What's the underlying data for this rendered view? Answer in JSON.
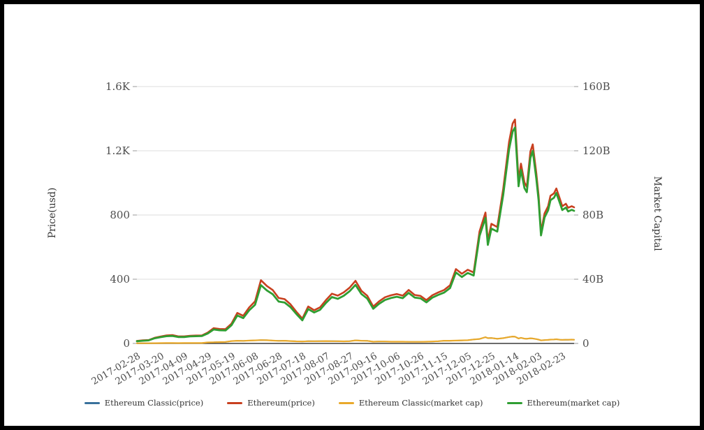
{
  "chart": {
    "left_axis_name": "Price(usd)",
    "right_axis_name": "Market Capital"
  },
  "chart_data": {
    "type": "line",
    "title": "",
    "grid": true,
    "legend_position": "bottom",
    "left_axis": {
      "label": "Price(usd)",
      "ticks": [
        "0",
        "400",
        "800",
        "1.2K",
        "1.6K"
      ],
      "min": 0,
      "max": 1600
    },
    "right_axis": {
      "label": "Market Capital",
      "ticks": [
        "0",
        "40B",
        "80B",
        "120B",
        "160B"
      ],
      "min": 0,
      "max": 160
    },
    "x_ticks": [
      "2017-02-28",
      "2017-03-20",
      "2017-04-09",
      "2017-04-29",
      "2017-05-19",
      "2017-06-08",
      "2017-06-28",
      "2017-07-18",
      "2017-08-07",
      "2017-08-27",
      "2017-09-16",
      "2017-10-06",
      "2017-10-26",
      "2017-11-15",
      "2017-12-05",
      "2017-12-25",
      "2018-01-14",
      "2018-02-03",
      "2018-02-23"
    ],
    "x": [
      "2017-02-28",
      "2017-03-05",
      "2017-03-10",
      "2017-03-15",
      "2017-03-20",
      "2017-03-25",
      "2017-03-30",
      "2017-04-04",
      "2017-04-09",
      "2017-04-14",
      "2017-04-19",
      "2017-04-24",
      "2017-04-29",
      "2017-05-04",
      "2017-05-09",
      "2017-05-14",
      "2017-05-19",
      "2017-05-24",
      "2017-05-29",
      "2017-06-03",
      "2017-06-08",
      "2017-06-13",
      "2017-06-18",
      "2017-06-23",
      "2017-06-28",
      "2017-07-03",
      "2017-07-08",
      "2017-07-13",
      "2017-07-18",
      "2017-07-23",
      "2017-07-28",
      "2017-08-02",
      "2017-08-07",
      "2017-08-12",
      "2017-08-17",
      "2017-08-22",
      "2017-08-27",
      "2017-09-01",
      "2017-09-06",
      "2017-09-11",
      "2017-09-16",
      "2017-09-21",
      "2017-09-26",
      "2017-10-01",
      "2017-10-06",
      "2017-10-11",
      "2017-10-16",
      "2017-10-21",
      "2017-10-26",
      "2017-10-31",
      "2017-11-05",
      "2017-11-10",
      "2017-11-15",
      "2017-11-20",
      "2017-11-25",
      "2017-11-30",
      "2017-12-05",
      "2017-12-10",
      "2017-12-15",
      "2017-12-20",
      "2017-12-22",
      "2017-12-25",
      "2017-12-30",
      "2018-01-04",
      "2018-01-09",
      "2018-01-12",
      "2018-01-14",
      "2018-01-17",
      "2018-01-19",
      "2018-01-22",
      "2018-01-24",
      "2018-01-27",
      "2018-01-29",
      "2018-02-01",
      "2018-02-03",
      "2018-02-05",
      "2018-02-08",
      "2018-02-11",
      "2018-02-13",
      "2018-02-16",
      "2018-02-18",
      "2018-02-21",
      "2018-02-23",
      "2018-02-26",
      "2018-02-28",
      "2018-03-03",
      "2018-03-05"
    ],
    "series": [
      {
        "name": "Ethereum Classic(price)",
        "axis": "left",
        "color": "#39719c",
        "width": 1.8,
        "values": [
          1.2,
          1.3,
          1.2,
          1.9,
          2.2,
          2.4,
          2.5,
          2.3,
          2.5,
          2.6,
          2.5,
          2.8,
          6.5,
          7.5,
          9,
          9.5,
          15,
          17,
          16,
          18,
          19,
          21,
          20.5,
          18,
          16.5,
          17.5,
          15,
          13.5,
          12,
          14.5,
          13.8,
          14.5,
          15,
          14.2,
          13.8,
          13.5,
          14.5,
          19.5,
          17.5,
          16.5,
          11.5,
          12,
          11.8,
          11.5,
          11.2,
          10.8,
          10.5,
          10.3,
          10.4,
          10.6,
          11.5,
          13.5,
          17,
          16.5,
          17.5,
          18.5,
          20,
          25,
          28,
          39,
          33,
          34,
          29,
          33,
          40,
          43,
          42,
          31,
          35,
          30,
          29,
          32,
          31,
          27,
          24,
          19,
          21,
          22,
          24,
          25,
          26,
          23,
          22,
          23,
          22.5,
          24,
          23
        ]
      },
      {
        "name": "Ethereum(price)",
        "axis": "left",
        "color": "#c8401f",
        "width": 2.6,
        "values": [
          15.6,
          19,
          21,
          35,
          43,
          50,
          52,
          44,
          44,
          48,
          49,
          50,
          68,
          95,
          90,
          89,
          123,
          190,
          172,
          224,
          262,
          394,
          358,
          332,
          283,
          276,
          244,
          197,
          155,
          230,
          207,
          225,
          270,
          310,
          298,
          318,
          347,
          390,
          328,
          297,
          230,
          262,
          288,
          300,
          308,
          298,
          333,
          302,
          296,
          270,
          300,
          318,
          333,
          362,
          463,
          434,
          459,
          442,
          698,
          815,
          640,
          745,
          725,
          962,
          1255,
          1370,
          1395,
          1015,
          1120,
          1003,
          975,
          1195,
          1240,
          1060,
          920,
          695,
          810,
          855,
          920,
          935,
          965,
          900,
          855,
          870,
          845,
          855,
          848
        ]
      },
      {
        "name": "Ethereum Classic(market cap)",
        "axis": "right",
        "color": "#e9a92b",
        "width": 2.2,
        "values": [
          0.12,
          0.13,
          0.12,
          0.19,
          0.22,
          0.24,
          0.25,
          0.23,
          0.25,
          0.26,
          0.25,
          0.28,
          0.64,
          0.74,
          0.89,
          0.94,
          1.5,
          1.7,
          1.6,
          1.8,
          1.9,
          2.1,
          2.0,
          1.8,
          1.6,
          1.7,
          1.5,
          1.3,
          1.2,
          1.4,
          1.4,
          1.4,
          1.5,
          1.4,
          1.4,
          1.3,
          1.4,
          1.9,
          1.7,
          1.6,
          1.1,
          1.2,
          1.2,
          1.1,
          1.1,
          1.1,
          1.0,
          1.0,
          1.0,
          1.1,
          1.2,
          1.4,
          1.7,
          1.7,
          1.8,
          1.9,
          2.0,
          2.5,
          2.8,
          3.9,
          3.3,
          3.4,
          2.9,
          3.3,
          4.0,
          4.3,
          4.2,
          3.1,
          3.5,
          3.0,
          2.9,
          3.2,
          3.1,
          2.7,
          2.4,
          1.9,
          2.1,
          2.2,
          2.4,
          2.5,
          2.6,
          2.3,
          2.2,
          2.3,
          2.3,
          2.4,
          2.3
        ]
      },
      {
        "name": "Ethereum(market cap)",
        "axis": "right",
        "color": "#2f9e32",
        "width": 2.8,
        "values": [
          1.4,
          1.7,
          1.9,
          3.2,
          3.9,
          4.5,
          4.7,
          4.0,
          4.0,
          4.4,
          4.5,
          4.6,
          6.2,
          8.7,
          8.2,
          8.1,
          11.3,
          17.4,
          15.8,
          20.6,
          24.1,
          36.3,
          33.0,
          30.6,
          26.1,
          25.5,
          22.6,
          18.3,
          14.4,
          21.4,
          19.3,
          20.9,
          25.2,
          28.9,
          27.8,
          29.7,
          32.5,
          36.5,
          30.8,
          27.9,
          21.6,
          24.7,
          27.1,
          28.3,
          29.1,
          28.2,
          31.5,
          28.6,
          28.1,
          25.6,
          28.5,
          30.2,
          31.7,
          34.5,
          44.2,
          41.4,
          43.9,
          42.3,
          66.9,
          78.2,
          61.4,
          71.5,
          69.7,
          92.5,
          120.9,
          132.0,
          134.5,
          97.9,
          108.1,
          96.8,
          94.2,
          115.5,
          119.9,
          102.6,
          89.1,
          67.3,
          78.5,
          82.9,
          89.2,
          90.8,
          93.7,
          87.4,
          83.1,
          84.6,
          82.2,
          83.2,
          82.6
        ]
      }
    ]
  }
}
